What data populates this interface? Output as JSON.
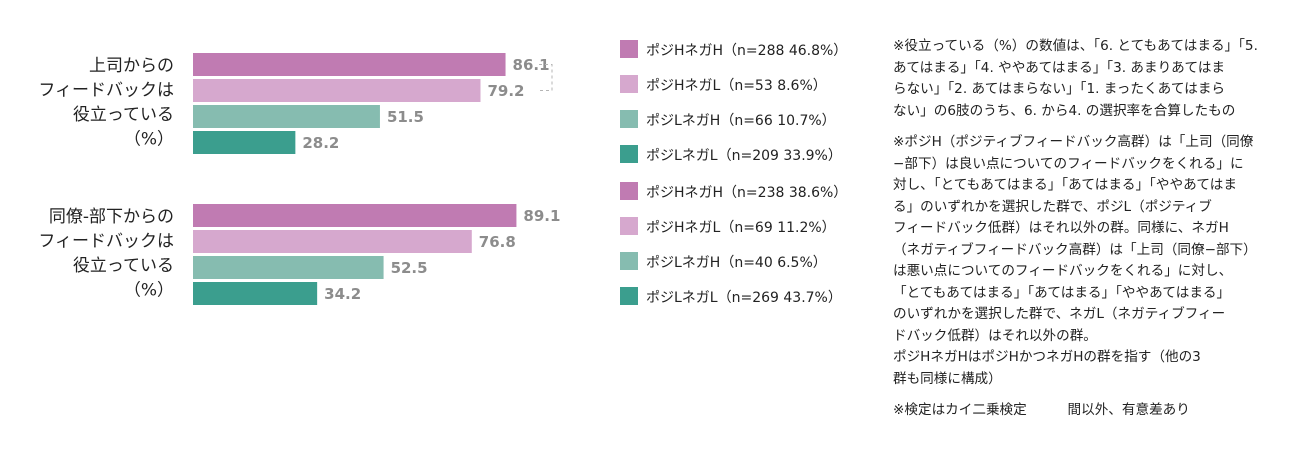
{
  "chart_data": [
    {
      "type": "bar",
      "orientation": "horizontal",
      "group_label": [
        "上司からの",
        "フィードバックは",
        "役立っている",
        "（%）"
      ],
      "categories": [
        "ポジHネガH",
        "ポジHネガL",
        "ポジLネガH",
        "ポジLネガL"
      ],
      "values": [
        86.1,
        79.2,
        51.5,
        28.2
      ],
      "value_labels": [
        "86.1",
        "79.2",
        "51.5",
        "28.2"
      ],
      "legend": [
        "ポジHネガH（n=288 46.8%）",
        "ポジHネガL（n=53 8.6%）",
        "ポジLネガH（n=66 10.7%）",
        "ポジLネガL（n=209 33.9%）"
      ],
      "bracket": [
        0,
        1
      ],
      "xlim": [
        0,
        100
      ]
    },
    {
      "type": "bar",
      "orientation": "horizontal",
      "group_label": [
        "同僚‐部下からの",
        "フィードバックは",
        "役立っている",
        "（%）"
      ],
      "categories": [
        "ポジHネガH",
        "ポジHネガL",
        "ポジLネガH",
        "ポジLネガL"
      ],
      "values": [
        89.1,
        76.8,
        52.5,
        34.2
      ],
      "value_labels": [
        "89.1",
        "76.8",
        "52.5",
        "34.2"
      ],
      "legend": [
        "ポジHネガH（n=238 38.6%）",
        "ポジHネガL（n=69 11.2%）",
        "ポジLネガH（n=40 6.5%）",
        "ポジLネガL（n=269 43.7%）"
      ],
      "xlim": [
        0,
        100
      ]
    }
  ],
  "colors": [
    "#c07bb2",
    "#d6a8ce",
    "#86bcb0",
    "#3b9e8e"
  ],
  "notes": [
    [
      "※役立っている（%）の数値は、「6. とてもあてはまる」「5.",
      "あてはまる」「4. ややあてはまる」「3. あまりあてはま",
      "らない」「2. あてはまらない」「1. まったくあてはまら",
      "ない」の6肢のうち、6. から4. の選択率を合算したもの"
    ],
    [
      "※ポジH（ポジティブフィードバック高群）は「上司（同僚",
      "−部下）は良い点についてのフィードバックをくれる」に",
      "対し、「とてもあてはまる」「あてはまる」「ややあてはま",
      "る」のいずれかを選択した群で、ポジL（ポジティブ",
      "フィードバック低群）はそれ以外の群。同様に、ネガH",
      "（ネガティブフィードバック高群）は「上司（同僚−部下）",
      "は悪い点についてのフィードバックをくれる」に対し、",
      "「とてもあてはまる」「あてはまる」「ややあてはまる」",
      "のいずれかを選択した群で、ネガL（ネガティブフィー",
      "ドバック低群）はそれ以外の群。",
      "ポジHネガHはポジHかつネガHの群を指す（他の3",
      "群も同様に構成）"
    ],
    [
      "※検定はカイ二乗検定　　　間以外、有意差あり"
    ]
  ]
}
